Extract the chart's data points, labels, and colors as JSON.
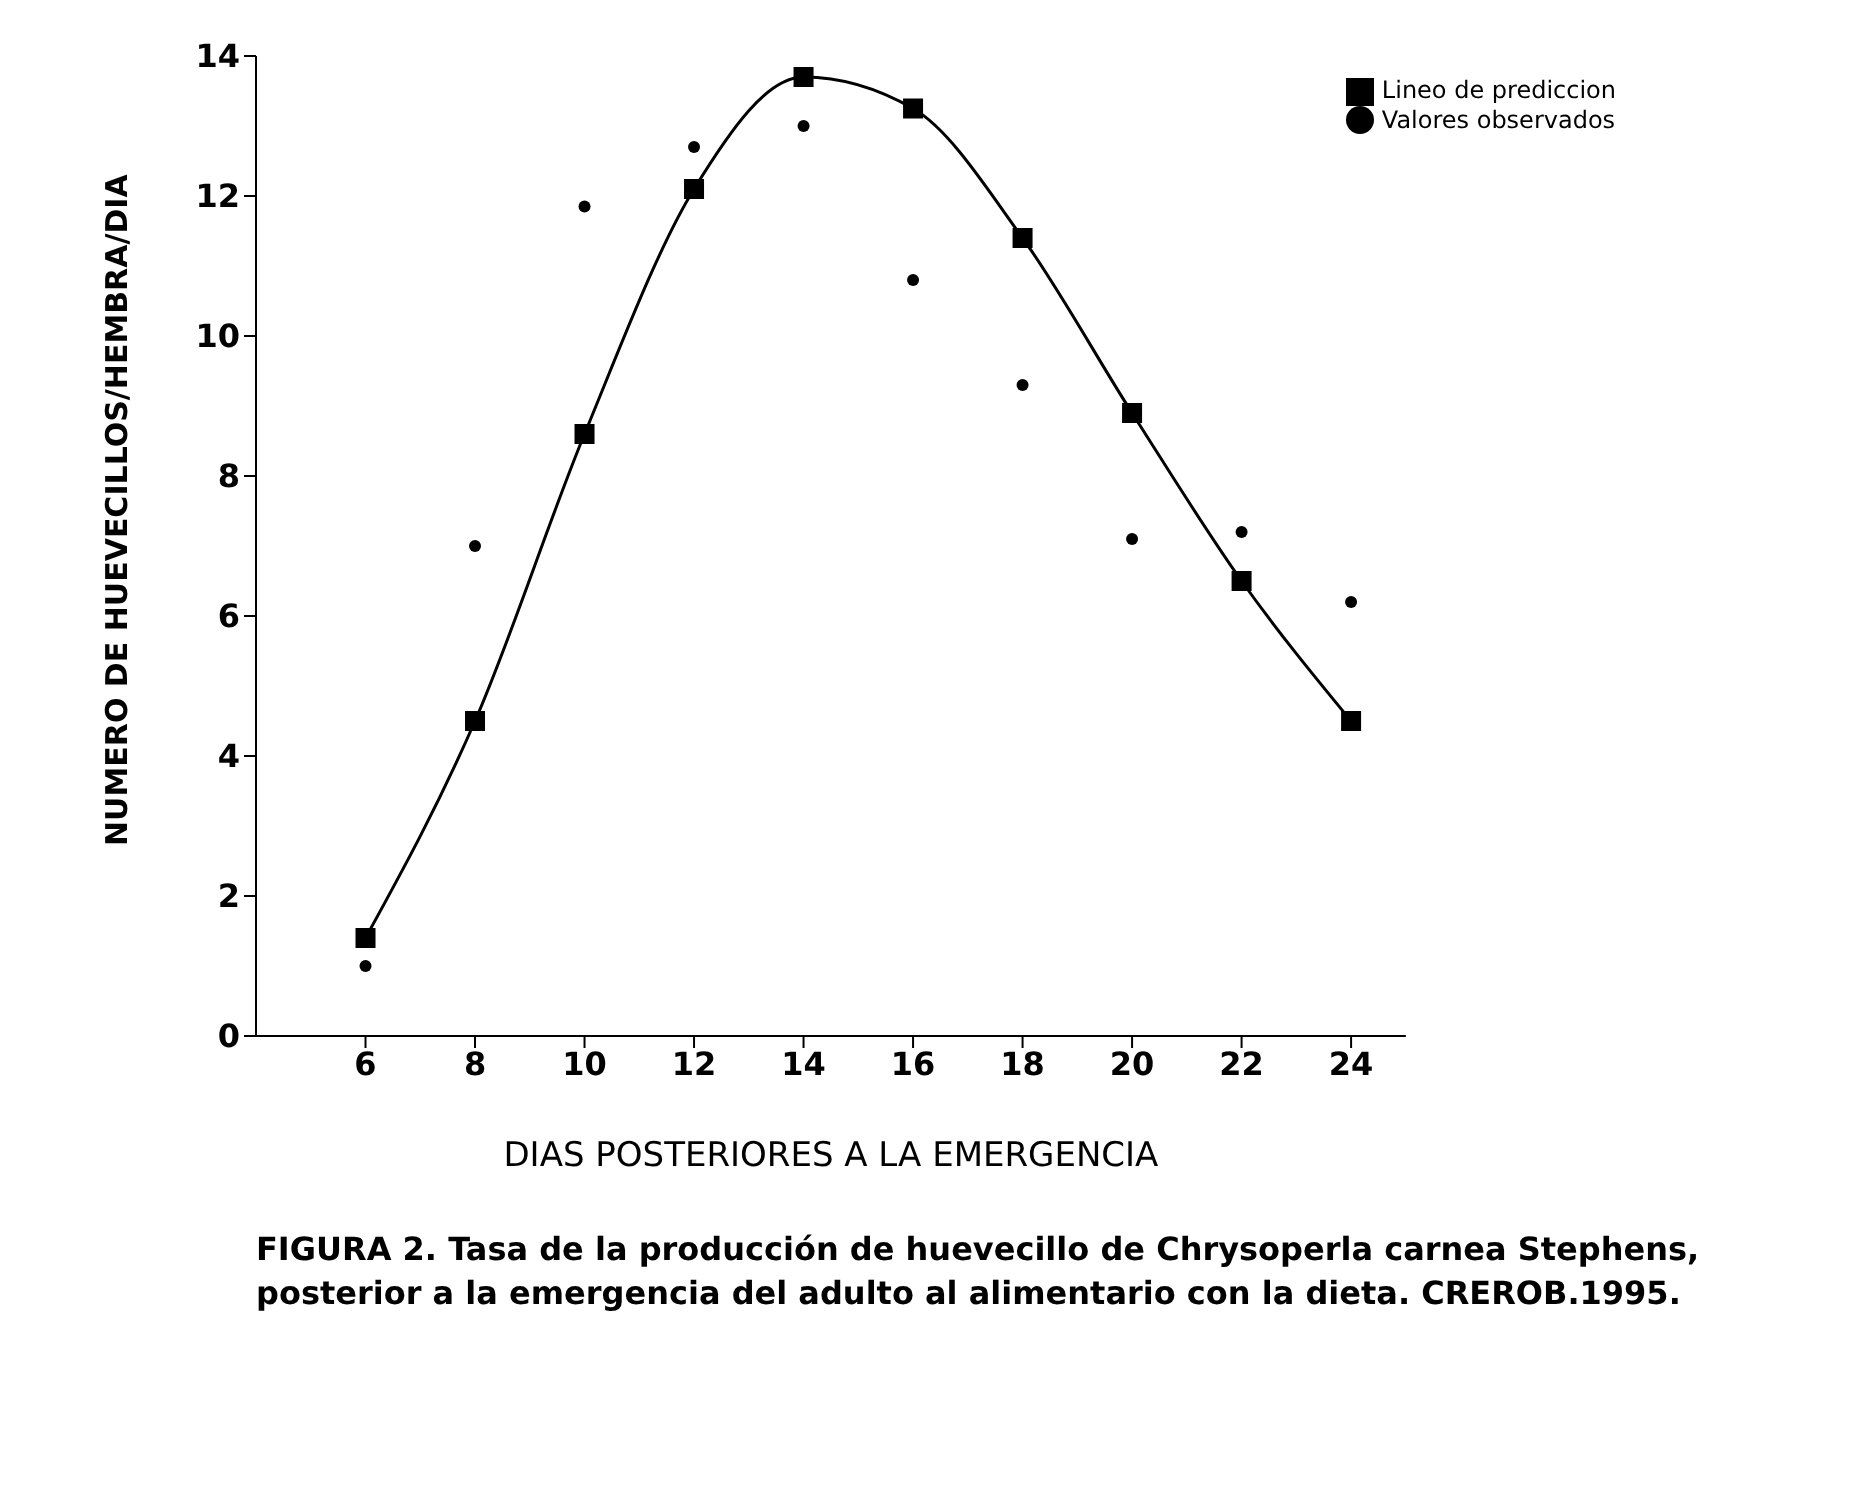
{
  "chart_data": {
    "type": "scatter",
    "xlabel": "DIAS POSTERIORES A LA EMERGENCIA",
    "ylabel": "NUMERO DE HUEVECILLOS/HEMBRA/DIA",
    "annotations": [
      "FIGURA 2. Tasa de la producción de huevecillo de Chrysoperla carnea Stephens, posterior a la emergencia del adulto al alimentario con la dieta. CREROB.1995."
    ],
    "xlim": [
      4,
      25
    ],
    "xticks": [
      6,
      8,
      10,
      12,
      14,
      16,
      18,
      20,
      22,
      24
    ],
    "ylim": [
      0,
      14
    ],
    "yticks": [
      0,
      2,
      4,
      6,
      8,
      10,
      12,
      14
    ],
    "legend": "top right",
    "series": [
      {
        "name": "Valores observados",
        "marker": "circle",
        "color": "#000000",
        "x": [
          6,
          8,
          10,
          12,
          14,
          16,
          18,
          20,
          22,
          24
        ],
        "values": [
          1.0,
          7.0,
          11.85,
          12.7,
          13.0,
          10.8,
          9.3,
          7.1,
          7.2,
          6.2
        ]
      },
      {
        "name": "Lineo de prediccion",
        "type": "line",
        "marker": "square",
        "line_style": "solid",
        "color": "#000000",
        "x": [
          6,
          8,
          10,
          12,
          14,
          16,
          18,
          20,
          22,
          24
        ],
        "values": [
          1.4,
          4.5,
          8.6,
          12.1,
          13.7,
          13.25,
          11.4,
          8.9,
          6.5,
          4.5
        ]
      }
    ]
  }
}
